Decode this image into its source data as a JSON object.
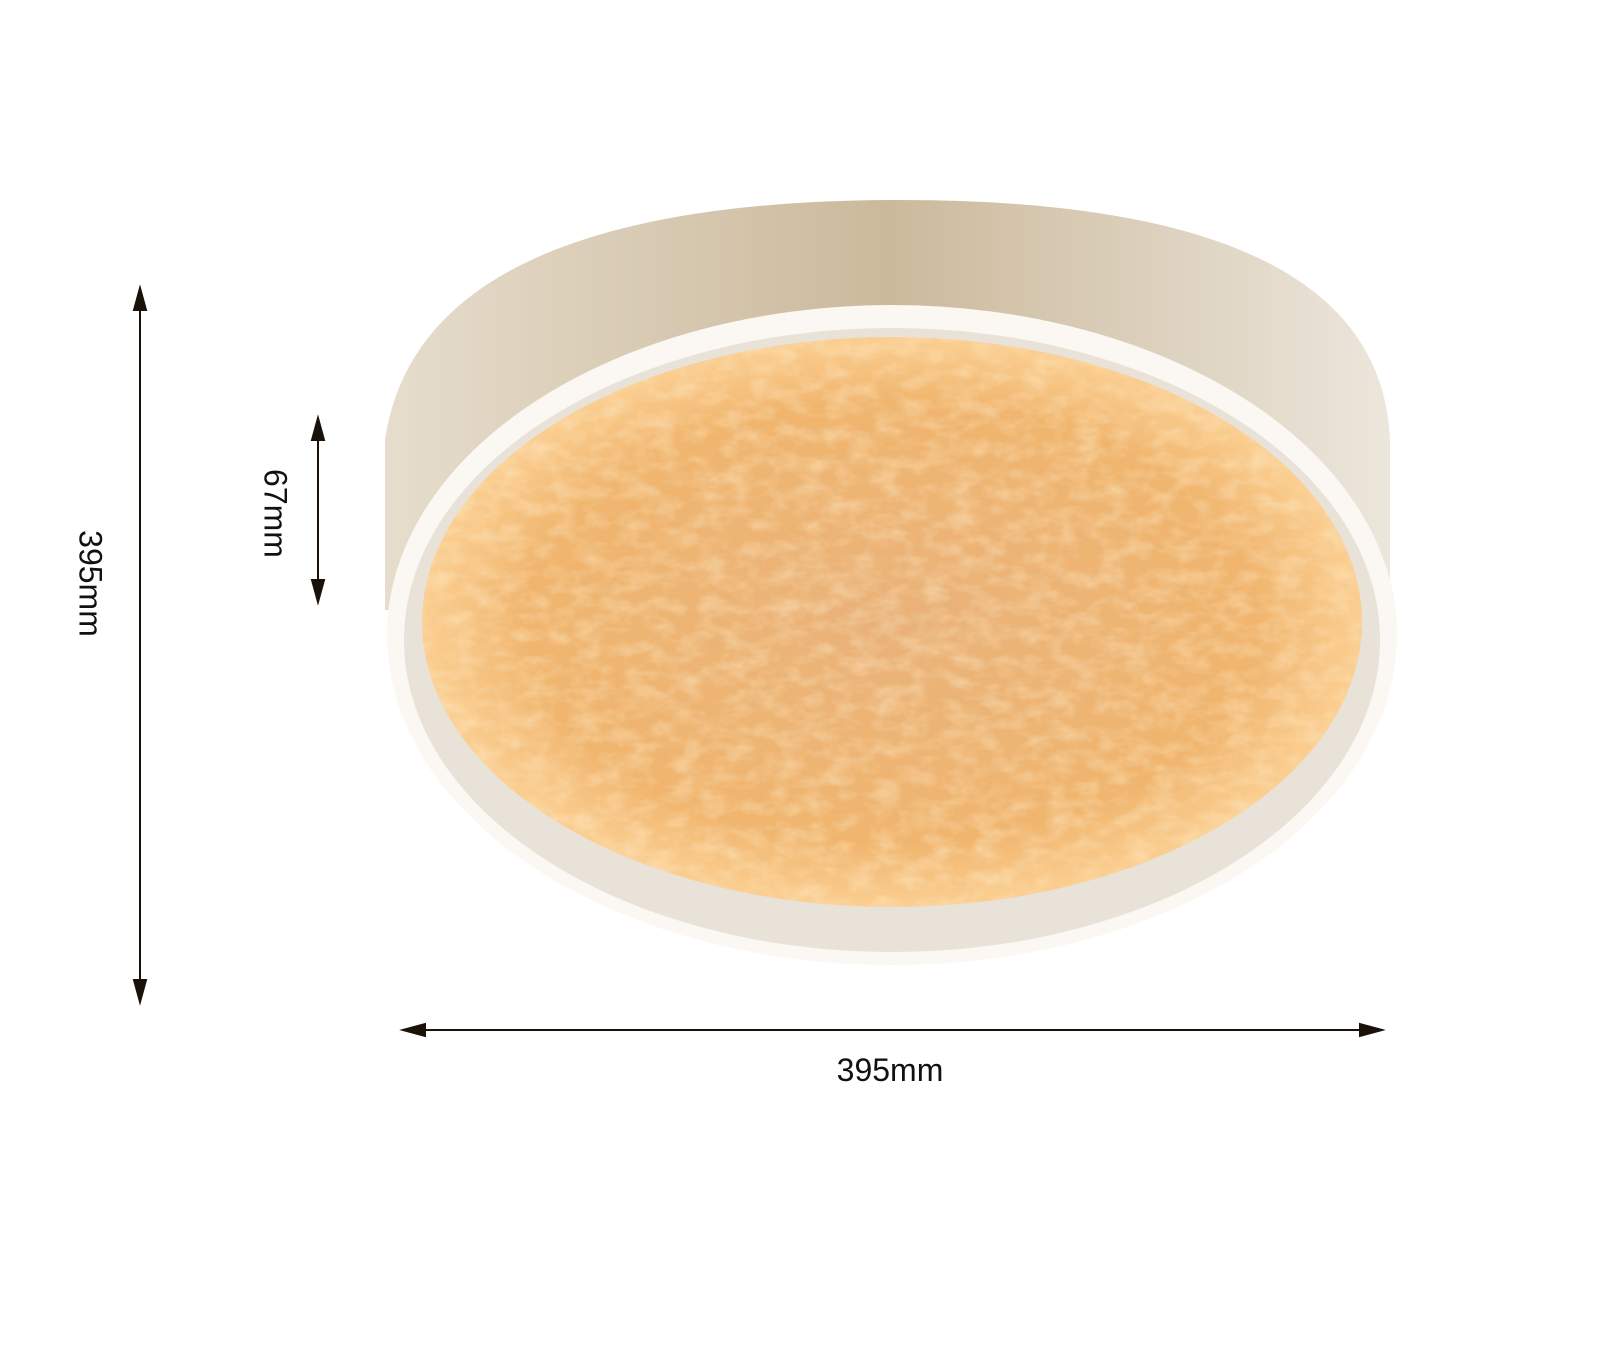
{
  "dimensions": {
    "height_label": "395mm",
    "depth_label": "67mm",
    "width_label": "395mm"
  },
  "colors": {
    "housing": "#d9cdb8",
    "glow": "#f6b868",
    "ring": "#fdf6ec",
    "dimension_line": "#1a1208"
  }
}
